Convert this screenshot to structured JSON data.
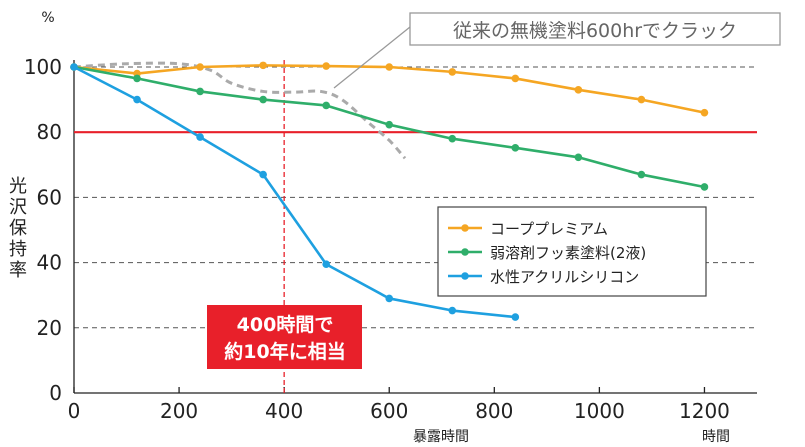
{
  "chart_data": {
    "type": "line",
    "y_unit": "%",
    "ylabel": "光沢保持率",
    "xlabel": "暴露時間",
    "x_unit": "時間",
    "xlim": [
      0,
      1300
    ],
    "ylim": [
      0,
      100
    ],
    "x_ticks": [
      0,
      200,
      400,
      600,
      800,
      1000,
      1200
    ],
    "y_ticks": [
      0,
      20,
      40,
      60,
      80,
      100
    ],
    "series": [
      {
        "name": "コーププレミアム",
        "color": "#f5a623",
        "x": [
          0,
          120,
          240,
          360,
          480,
          600,
          720,
          840,
          960,
          1080,
          1200
        ],
        "y": [
          100,
          98,
          100,
          100.5,
          100.3,
          100,
          98.5,
          96.5,
          93,
          90,
          86
        ]
      },
      {
        "name": "弱溶剤フッ素塗料(2液)",
        "color": "#2fae6a",
        "x": [
          0,
          120,
          240,
          360,
          480,
          600,
          720,
          840,
          960,
          1080,
          1200
        ],
        "y": [
          100,
          96.5,
          92.5,
          90,
          88.2,
          82.3,
          78,
          75.2,
          72.3,
          67,
          63.2
        ]
      },
      {
        "name": "水性アクリルシリコン",
        "color": "#1ea0e0",
        "x": [
          0,
          120,
          240,
          360,
          480,
          600,
          720,
          840
        ],
        "y": [
          100,
          90,
          78.5,
          67,
          39.5,
          29,
          25.3,
          23.3
        ]
      }
    ],
    "reference_line": {
      "y": 80,
      "color": "#e8202a"
    },
    "marker_line": {
      "x": 400,
      "color": "#e8202a"
    },
    "inorganic_curve": {
      "color": "#aaaaaa",
      "x": [
        0,
        100,
        200,
        260,
        300,
        360,
        420,
        470,
        510,
        560,
        600,
        630
      ],
      "y": [
        100,
        101,
        101,
        99,
        95,
        92.5,
        92.3,
        92.5,
        90,
        83,
        77.5,
        72
      ]
    },
    "annotations": {
      "callout": "従来の無機塗料600hrでクラック",
      "note_line1": "400時間で",
      "note_line2": "約10年に相当"
    },
    "legend_position": "center-right",
    "grid": "horizontal-dashed"
  }
}
